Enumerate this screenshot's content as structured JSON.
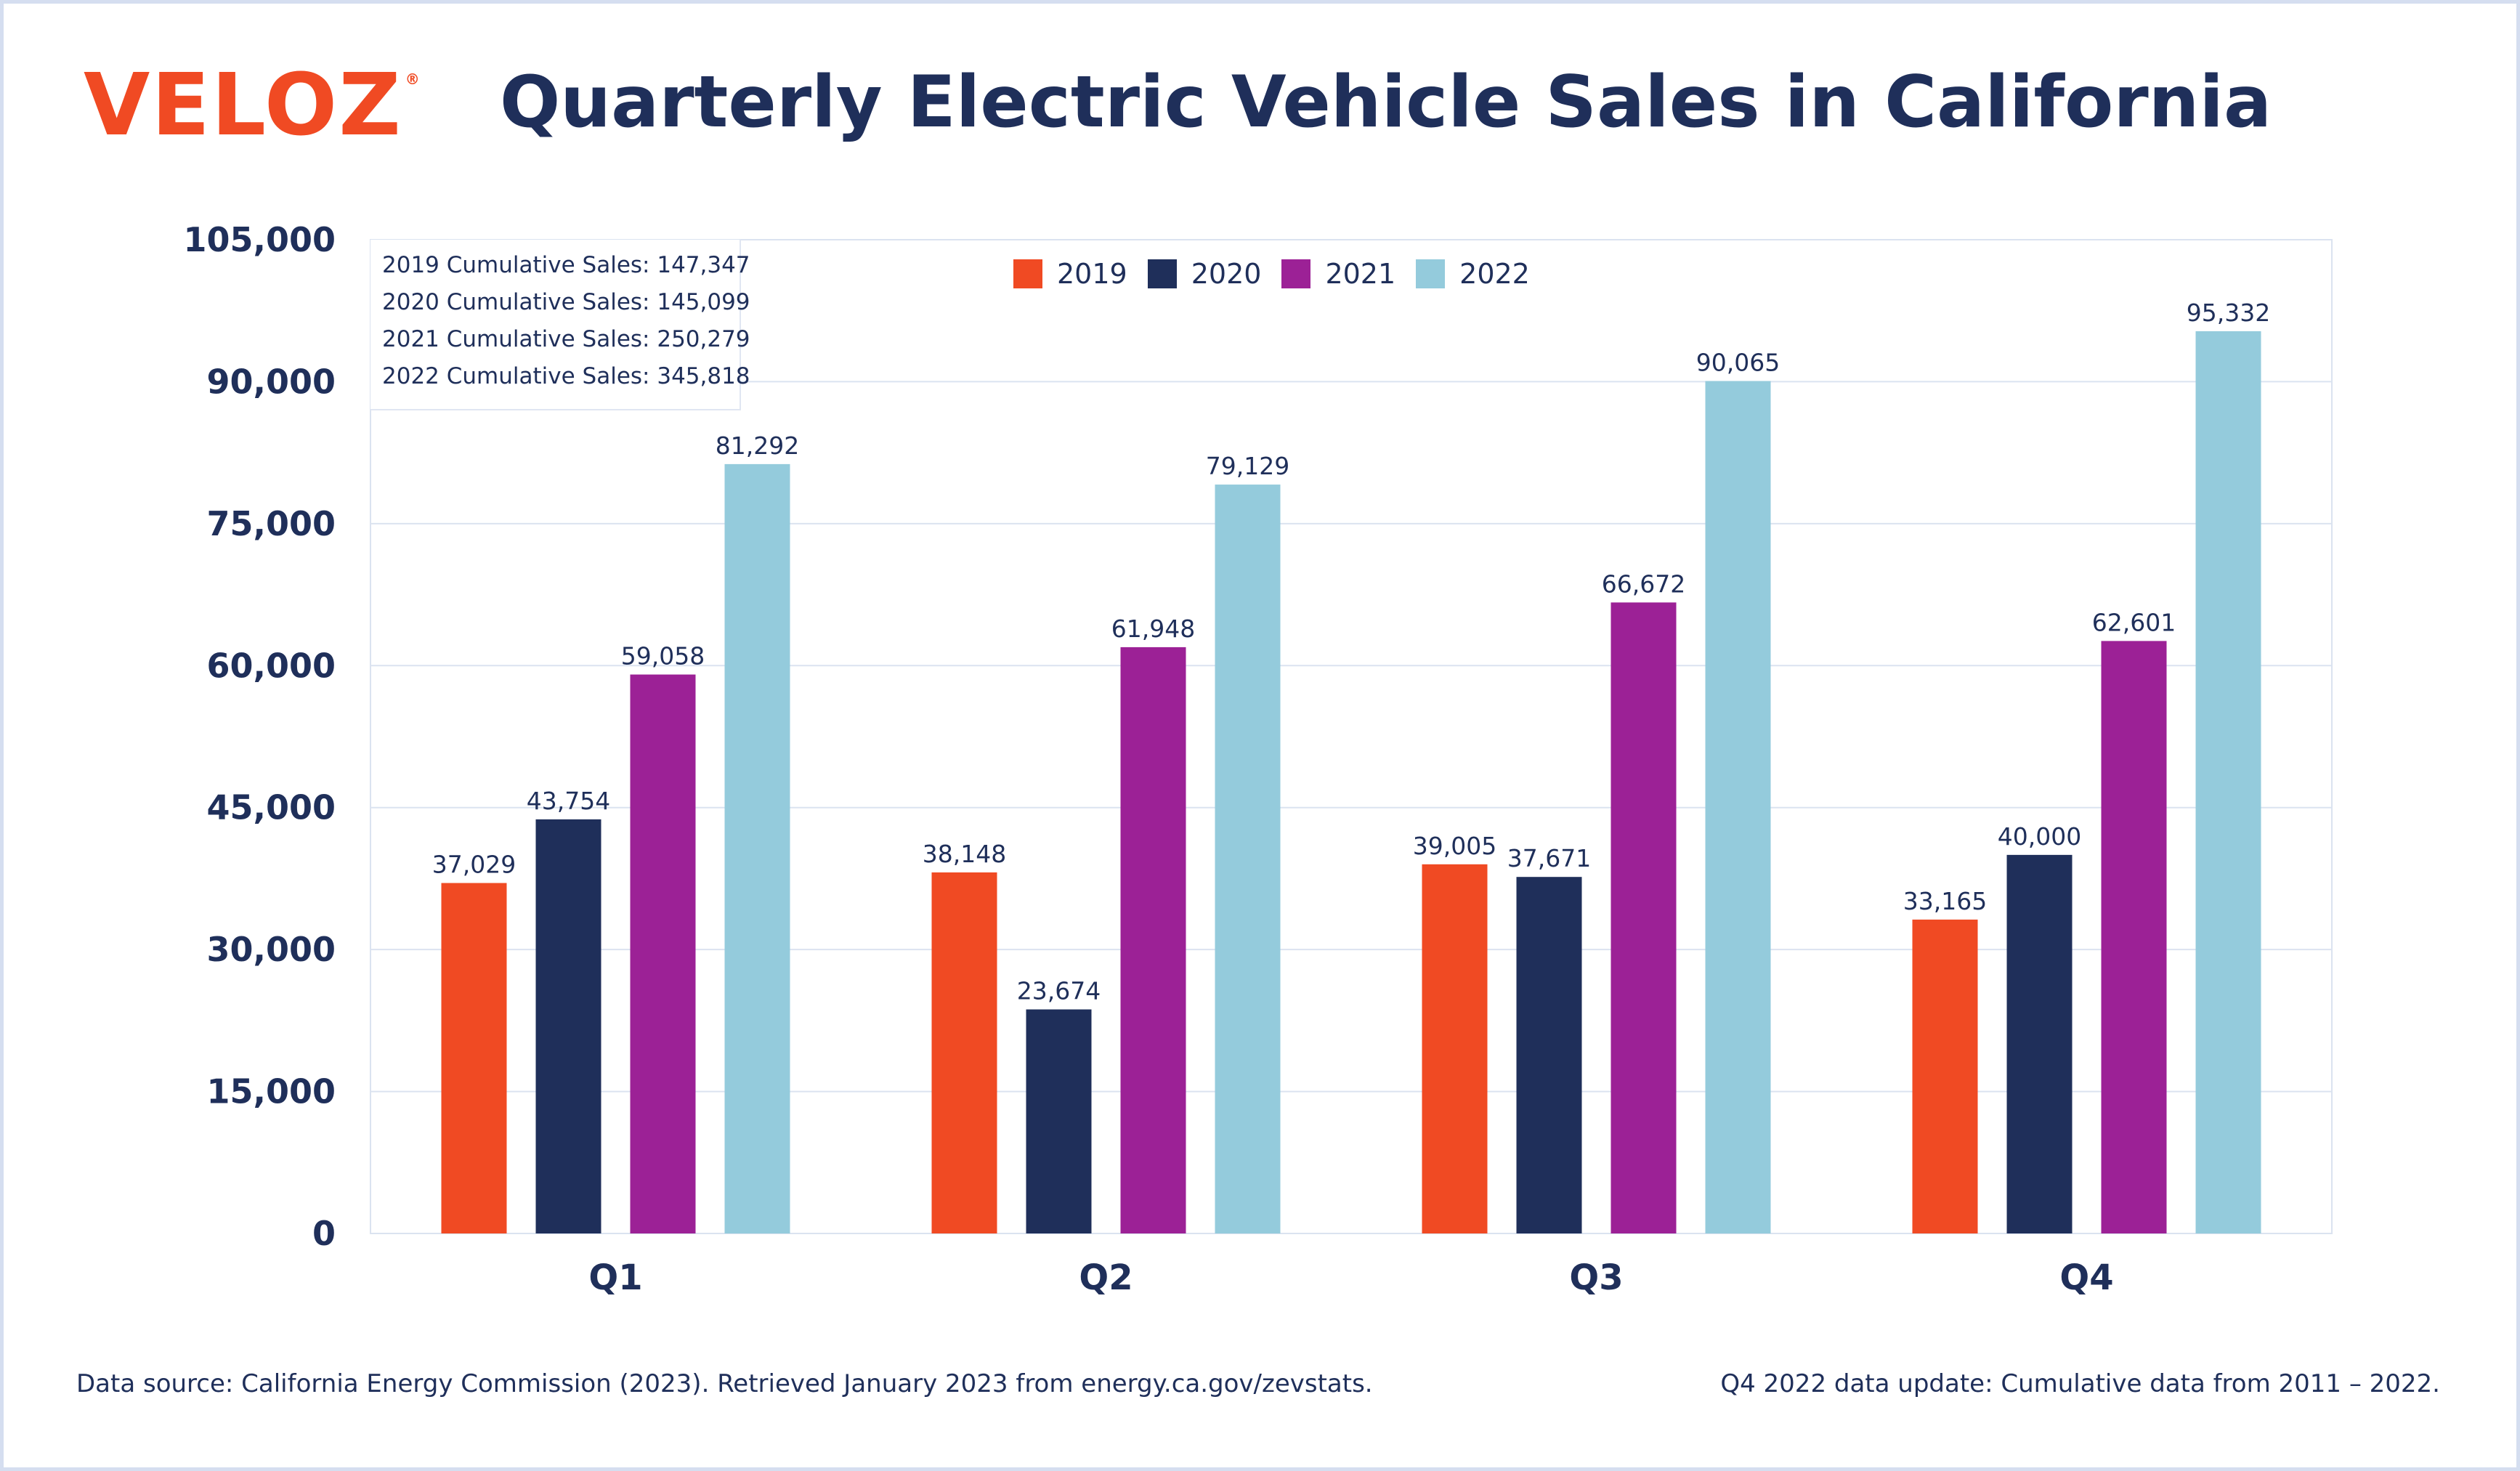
{
  "header": {
    "logo_text": "VELOZ",
    "logo_mark": "®",
    "title": "Quarterly Electric Vehicle Sales in California"
  },
  "cumulative": [
    "2019 Cumulative Sales: 147,347",
    "2020 Cumulative Sales: 145,099",
    "2021 Cumulative Sales: 250,279",
    "2022 Cumulative Sales: 345,818"
  ],
  "footer": {
    "source": "Data source: California Energy Commission (2023). Retrieved January 2023 from energy.ca.gov/zevstats.",
    "update": "Q4 2022 data update: Cumulative data from 2011 – 2022."
  },
  "colors": {
    "2019": "#f04a23",
    "2020": "#1f2f5a",
    "2021": "#9c2196",
    "2022": "#94cbdc",
    "grid": "#dbe3f0",
    "text": "#1f2f5a"
  },
  "chart_data": {
    "type": "bar",
    "title": "Quarterly Electric Vehicle Sales in California",
    "categories": [
      "Q1",
      "Q2",
      "Q3",
      "Q4"
    ],
    "series": [
      {
        "name": "2019",
        "values": [
          37029,
          38148,
          39005,
          33165
        ],
        "labels": [
          "37,029",
          "38,148",
          "39,005",
          "33,165"
        ]
      },
      {
        "name": "2020",
        "values": [
          43754,
          23674,
          37671,
          40000
        ],
        "labels": [
          "43,754",
          "23,674",
          "37,671",
          "40,000"
        ]
      },
      {
        "name": "2021",
        "values": [
          59058,
          61948,
          66672,
          62601
        ],
        "labels": [
          "59,058",
          "61,948",
          "66,672",
          "62,601"
        ]
      },
      {
        "name": "2022",
        "values": [
          81292,
          79129,
          90065,
          95332
        ],
        "labels": [
          "81,292",
          "79,129",
          "90,065",
          "95,332"
        ]
      }
    ],
    "yticks": [
      0,
      15000,
      30000,
      45000,
      60000,
      75000,
      90000,
      105000
    ],
    "ytick_labels": [
      "0",
      "15,000",
      "30,000",
      "45,000",
      "60,000",
      "75,000",
      "90,000",
      "105,000"
    ],
    "ylim": [
      0,
      105000
    ],
    "grid": true,
    "legend": "top-center"
  }
}
